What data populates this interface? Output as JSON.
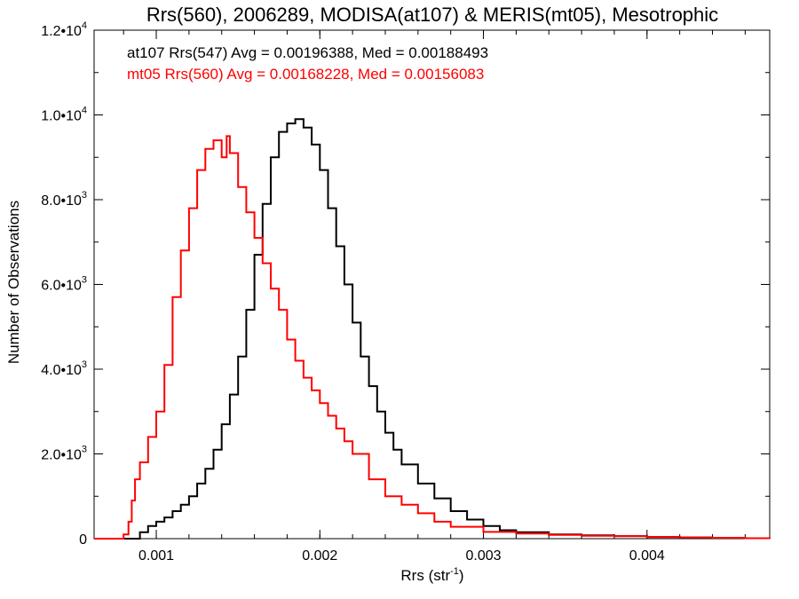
{
  "chart_data": {
    "type": "line",
    "title": "Rrs(560), 2006289, MODISA(at107) & MERIS(mt05), Mesotrophic",
    "xlabel": "Rrs (str",
    "xlabel_sup": "-1",
    "xlabel_close": ")",
    "ylabel": "Number of Observations",
    "xlim": [
      0.00062,
      0.00475
    ],
    "ylim": [
      0,
      12000
    ],
    "grid": false,
    "line_style": "histogram-step",
    "x_ticks": [
      {
        "value": 0.001,
        "label": "0.001"
      },
      {
        "value": 0.002,
        "label": "0.002"
      },
      {
        "value": 0.003,
        "label": "0.003"
      },
      {
        "value": 0.004,
        "label": "0.004"
      }
    ],
    "y_ticks": [
      {
        "value": 0,
        "base": "0",
        "exp": ""
      },
      {
        "value": 2000,
        "base": "2.0•10",
        "exp": "3"
      },
      {
        "value": 4000,
        "base": "4.0•10",
        "exp": "3"
      },
      {
        "value": 6000,
        "base": "6.0•10",
        "exp": "3"
      },
      {
        "value": 8000,
        "base": "8.0•10",
        "exp": "3"
      },
      {
        "value": 10000,
        "base": "1.0•10",
        "exp": "4"
      },
      {
        "value": 12000,
        "base": "1.2•10",
        "exp": "4"
      }
    ],
    "annotations": [
      {
        "text": "at107 Rrs(547) Avg = 0.00196388, Med = 0.00188493",
        "color": "#000000"
      },
      {
        "text": "mt05 Rrs(560) Avg = 0.00168228, Med = 0.00156083",
        "color": "#ff0000"
      }
    ],
    "series": [
      {
        "color": "#000000",
        "x": [
          0.00062,
          0.00085,
          0.0009,
          0.00095,
          0.001,
          0.00105,
          0.0011,
          0.00115,
          0.0012,
          0.00125,
          0.0013,
          0.00135,
          0.0014,
          0.00145,
          0.0015,
          0.00155,
          0.0016,
          0.00165,
          0.0017,
          0.00175,
          0.0018,
          0.00185,
          0.0019,
          0.00195,
          0.002,
          0.00205,
          0.0021,
          0.00215,
          0.0022,
          0.00225,
          0.0023,
          0.00235,
          0.0024,
          0.00245,
          0.0025,
          0.0026,
          0.0027,
          0.0028,
          0.0029,
          0.003,
          0.0031,
          0.0032,
          0.0034,
          0.0036,
          0.0038,
          0.004,
          0.0042,
          0.0044,
          0.0046,
          0.00475
        ],
        "values": [
          0,
          0,
          150,
          300,
          400,
          500,
          650,
          800,
          1000,
          1300,
          1650,
          2100,
          2700,
          3400,
          4300,
          5400,
          6700,
          7900,
          9000,
          9600,
          9800,
          9900,
          9700,
          9300,
          8700,
          7800,
          6900,
          6000,
          5100,
          4300,
          3600,
          3000,
          2500,
          2100,
          1750,
          1300,
          950,
          650,
          450,
          300,
          200,
          150,
          100,
          80,
          60,
          40,
          30,
          20,
          10,
          0
        ]
      },
      {
        "color": "#ff0000",
        "x": [
          0.00062,
          0.00075,
          0.0008,
          0.00083,
          0.00085,
          0.00087,
          0.0009,
          0.00095,
          0.001,
          0.00105,
          0.0011,
          0.00115,
          0.0012,
          0.00125,
          0.0013,
          0.00135,
          0.0014,
          0.00143,
          0.00145,
          0.0015,
          0.00155,
          0.0016,
          0.00165,
          0.0017,
          0.00175,
          0.0018,
          0.00185,
          0.0019,
          0.00195,
          0.002,
          0.00205,
          0.0021,
          0.00215,
          0.0022,
          0.0023,
          0.0024,
          0.0025,
          0.0026,
          0.0027,
          0.0028,
          0.003,
          0.0032,
          0.0034,
          0.0036,
          0.0038,
          0.004,
          0.0042,
          0.0044,
          0.0046,
          0.00475
        ],
        "values": [
          0,
          0,
          100,
          400,
          900,
          1400,
          1800,
          2400,
          3000,
          4100,
          5700,
          6800,
          7800,
          8700,
          9200,
          9400,
          9000,
          9500,
          9100,
          8300,
          7700,
          7100,
          6500,
          5900,
          5400,
          4700,
          4200,
          3800,
          3500,
          3200,
          2900,
          2600,
          2300,
          2000,
          1400,
          1000,
          800,
          600,
          400,
          280,
          160,
          120,
          90,
          70,
          60,
          40,
          30,
          20,
          10,
          0
        ]
      }
    ]
  }
}
